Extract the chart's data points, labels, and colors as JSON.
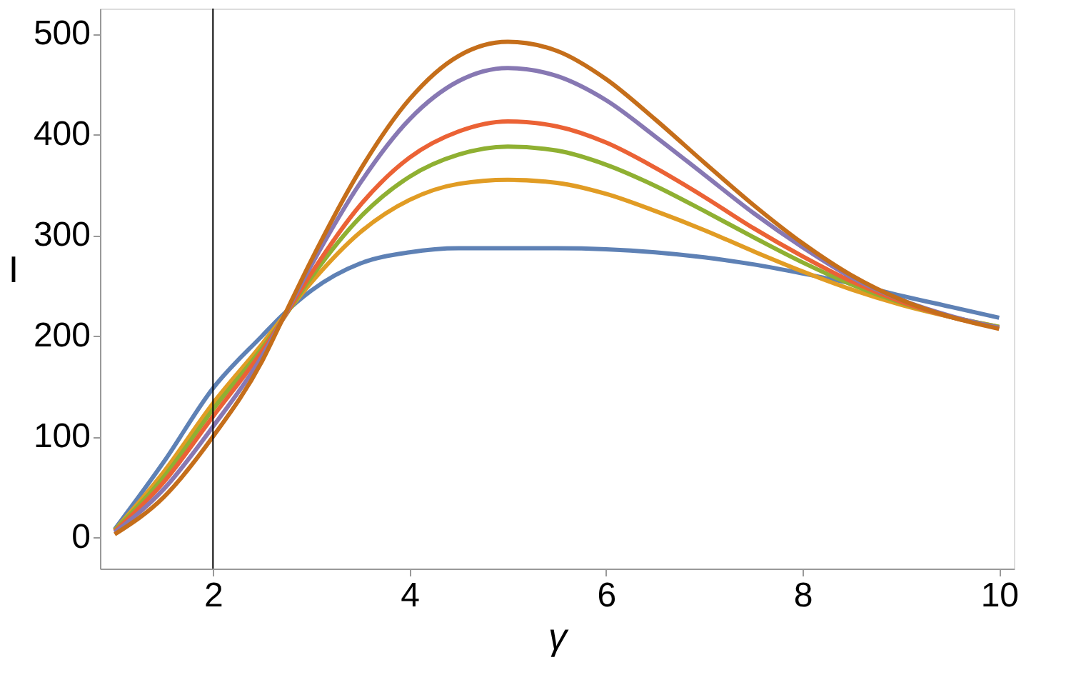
{
  "chart_data": {
    "type": "line",
    "xlabel": "γ",
    "ylabel": "I",
    "x": [
      1,
      1.5,
      2,
      2.5,
      2.7,
      3,
      3.5,
      4,
      4.5,
      5,
      5.5,
      6,
      6.5,
      7,
      7.5,
      8,
      8.5,
      9,
      9.5,
      10
    ],
    "series": [
      {
        "color": "#5e81b5",
        "values": [
          8,
          75,
          148,
          200,
          220,
          245,
          272,
          283,
          287,
          287,
          287,
          286,
          283,
          278,
          271,
          262,
          252,
          240,
          229,
          218
        ]
      },
      {
        "color": "#e19c24",
        "values": [
          7,
          65,
          133,
          192,
          217,
          253,
          303,
          335,
          351,
          355,
          352,
          341,
          324,
          305,
          284,
          264,
          246,
          231,
          219,
          209
        ]
      },
      {
        "color": "#8fb032",
        "values": [
          7,
          60,
          127,
          188,
          215,
          258,
          318,
          358,
          380,
          388,
          384,
          370,
          349,
          324,
          298,
          273,
          251,
          233,
          219,
          209
        ]
      },
      {
        "color": "#eb6235",
        "values": [
          6,
          55,
          120,
          185,
          215,
          262,
          330,
          377,
          403,
          413,
          408,
          392,
          367,
          338,
          307,
          279,
          254,
          234,
          219,
          208
        ]
      },
      {
        "color": "#8778b3",
        "values": [
          5,
          48,
          110,
          180,
          215,
          270,
          352,
          415,
          453,
          466,
          458,
          434,
          398,
          360,
          322,
          288,
          258,
          236,
          220,
          208
        ]
      },
      {
        "color": "#c56e1a",
        "values": [
          3,
          40,
          100,
          175,
          215,
          275,
          365,
          435,
          478,
          492,
          483,
          455,
          415,
          372,
          330,
          292,
          260,
          236,
          219,
          207
        ]
      }
    ],
    "xlim": [
      0.85,
      10.15
    ],
    "ylim": [
      -31,
      525
    ],
    "xticks": [
      2,
      4,
      6,
      8,
      10
    ],
    "yticks": [
      0,
      100,
      200,
      300,
      400,
      500
    ],
    "ref_lines": [
      {
        "axis": "x",
        "value": 2,
        "color": "#000000"
      }
    ],
    "grid": false,
    "legend": false,
    "line_style": "solid"
  }
}
